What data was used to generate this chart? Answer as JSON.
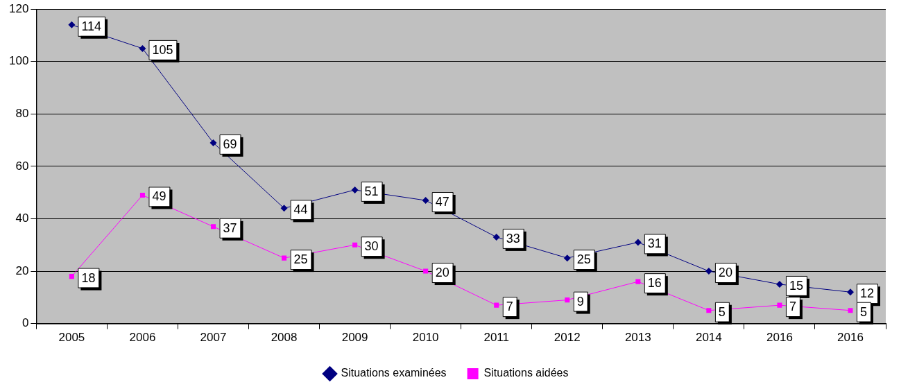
{
  "chart_data": {
    "type": "line",
    "categories": [
      "2005",
      "2006",
      "2007",
      "2008",
      "2009",
      "2010",
      "2011",
      "2012",
      "2013",
      "2014",
      "2016",
      "2016"
    ],
    "series": [
      {
        "name": "Situations examinées",
        "color": "#000080",
        "marker": "diamond",
        "values": [
          114,
          105,
          69,
          44,
          51,
          47,
          33,
          25,
          31,
          20,
          15,
          12
        ]
      },
      {
        "name": "Situations aidées",
        "color": "#ff00ff",
        "marker": "square",
        "values": [
          18,
          49,
          37,
          25,
          30,
          20,
          7,
          9,
          16,
          5,
          7,
          5
        ]
      }
    ],
    "ylim": [
      0,
      120
    ],
    "yticks": [
      0,
      20,
      40,
      60,
      80,
      100,
      120
    ],
    "grid": "y",
    "legend": "bottom",
    "data_labels": true
  }
}
